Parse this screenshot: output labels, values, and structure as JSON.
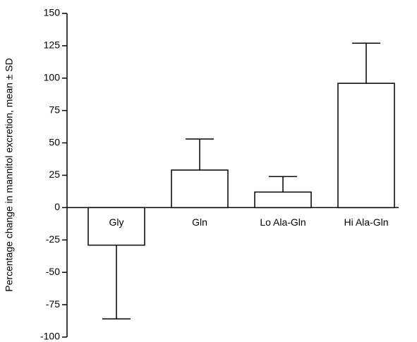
{
  "chart_data": {
    "type": "bar",
    "y_label": "Percentage change in mannitol excretion, mean ± SD",
    "categories": [
      "Gly",
      "Gln",
      "Lo Ala-Gln",
      "Hi Ala-Gln"
    ],
    "values": [
      -29,
      29,
      12,
      96
    ],
    "errors": [
      57,
      24,
      12,
      31
    ],
    "color": "#ffffff",
    "ylim": [
      -100,
      150
    ],
    "yticks": [
      -100,
      -75,
      -50,
      -25,
      0,
      25,
      50,
      75,
      100,
      125,
      150
    ]
  }
}
